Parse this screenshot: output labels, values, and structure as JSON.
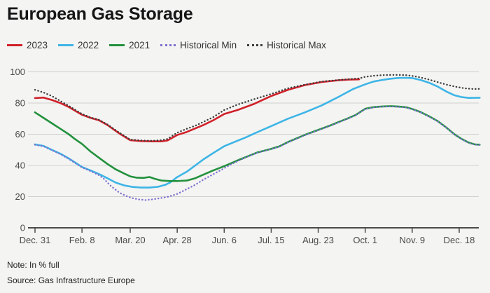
{
  "title": "European Gas Storage",
  "note": "Note: In % full",
  "source": "Source: Gas Infrastructure Europe",
  "colors": {
    "background": "#f4f4f2",
    "title_text": "#161616",
    "grid": "#cfcfcd",
    "axis": "#4b4b4b",
    "tick_label": "#4a4a4a",
    "footer_text": "#1e1e1e"
  },
  "legend": {
    "items": [
      {
        "label": "2023",
        "color": "#d0212a",
        "style": "solid"
      },
      {
        "label": "2022",
        "color": "#3db5e6",
        "style": "solid"
      },
      {
        "label": "2021",
        "color": "#22913d",
        "style": "solid"
      },
      {
        "label": "Historical Min",
        "color": "#7e6fd0",
        "style": "dotted"
      },
      {
        "label": "Historical Max",
        "color": "#3c3c3c",
        "style": "dotted"
      }
    ]
  },
  "chart_data": {
    "type": "line",
    "title": "European Gas Storage",
    "ylabel": "In % full",
    "x_unit": "day_of_year",
    "x_range": [
      0,
      369
    ],
    "ylim": [
      0,
      100
    ],
    "grid": "horizontal",
    "legend_position": "top",
    "y_ticks": [
      0,
      20,
      40,
      60,
      80,
      100
    ],
    "x_tick_days": [
      0,
      39,
      79,
      118,
      157,
      196,
      235,
      274,
      313,
      352
    ],
    "x_tick_labels": [
      "Dec. 31",
      "Feb. 8",
      "Mar. 20",
      "Apr. 28",
      "Jun. 6",
      "Jul. 15",
      "Aug. 23",
      "Oct. 1",
      "Nov. 9",
      "Dec. 18"
    ],
    "series": [
      {
        "name": "2023",
        "color": "#d0212a",
        "style": "solid",
        "points": [
          [
            0,
            83.2
          ],
          [
            7,
            83.5
          ],
          [
            14,
            82
          ],
          [
            21,
            80
          ],
          [
            28,
            77.5
          ],
          [
            39,
            72.5
          ],
          [
            46,
            70.5
          ],
          [
            53,
            69
          ],
          [
            60,
            66
          ],
          [
            70,
            60.5
          ],
          [
            79,
            56.2
          ],
          [
            88,
            55.6
          ],
          [
            97,
            55.4
          ],
          [
            105,
            55.4
          ],
          [
            110,
            56
          ],
          [
            118,
            59.5
          ],
          [
            126,
            61.5
          ],
          [
            140,
            66
          ],
          [
            148,
            69
          ],
          [
            157,
            73
          ],
          [
            168,
            75.5
          ],
          [
            182,
            79.5
          ],
          [
            196,
            84.5
          ],
          [
            210,
            88.5
          ],
          [
            224,
            91.5
          ],
          [
            238,
            93.5
          ],
          [
            252,
            94.6
          ],
          [
            260,
            95
          ],
          [
            269,
            95.2
          ]
        ]
      },
      {
        "name": "2022",
        "color": "#3db5e6",
        "style": "solid",
        "points": [
          [
            0,
            53.5
          ],
          [
            7,
            52.5
          ],
          [
            14,
            50
          ],
          [
            21,
            47.5
          ],
          [
            28,
            44.5
          ],
          [
            39,
            39
          ],
          [
            46,
            36.8
          ],
          [
            53,
            34.5
          ],
          [
            60,
            31.8
          ],
          [
            67,
            29
          ],
          [
            74,
            27.2
          ],
          [
            81,
            26.2
          ],
          [
            88,
            25.8
          ],
          [
            95,
            25.8
          ],
          [
            102,
            26.3
          ],
          [
            108,
            27.5
          ],
          [
            112,
            29
          ],
          [
            118,
            32.5
          ],
          [
            126,
            36
          ],
          [
            133,
            40
          ],
          [
            140,
            44
          ],
          [
            148,
            48
          ],
          [
            157,
            52.3
          ],
          [
            168,
            55.8
          ],
          [
            175,
            58
          ],
          [
            182,
            60.5
          ],
          [
            196,
            65.2
          ],
          [
            210,
            70
          ],
          [
            224,
            74
          ],
          [
            238,
            78.5
          ],
          [
            252,
            84
          ],
          [
            264,
            89
          ],
          [
            274,
            92
          ],
          [
            281,
            93.8
          ],
          [
            288,
            94.8
          ],
          [
            295,
            95.6
          ],
          [
            302,
            96.1
          ],
          [
            308,
            96.2
          ],
          [
            313,
            96
          ],
          [
            320,
            94.8
          ],
          [
            327,
            93
          ],
          [
            334,
            90.6
          ],
          [
            341,
            87.5
          ],
          [
            348,
            85
          ],
          [
            354,
            83.8
          ],
          [
            360,
            83.3
          ],
          [
            369,
            83.4
          ]
        ]
      },
      {
        "name": "2021",
        "color": "#22913d",
        "style": "solid",
        "points": [
          [
            0,
            74
          ],
          [
            7,
            70.5
          ],
          [
            14,
            67
          ],
          [
            21,
            63.5
          ],
          [
            28,
            60
          ],
          [
            33,
            57
          ],
          [
            39,
            53.8
          ],
          [
            46,
            49
          ],
          [
            53,
            45
          ],
          [
            60,
            41
          ],
          [
            67,
            37.5
          ],
          [
            74,
            34.8
          ],
          [
            79,
            33
          ],
          [
            84,
            32.2
          ],
          [
            90,
            32
          ],
          [
            95,
            32.6
          ],
          [
            99,
            31.5
          ],
          [
            105,
            30.3
          ],
          [
            112,
            30
          ],
          [
            118,
            30
          ],
          [
            126,
            30.3
          ],
          [
            133,
            31.8
          ],
          [
            140,
            34.2
          ],
          [
            148,
            36.8
          ],
          [
            157,
            39.5
          ],
          [
            163,
            41.5
          ],
          [
            170,
            43.8
          ],
          [
            177,
            46
          ],
          [
            184,
            48.2
          ],
          [
            191,
            49.6
          ],
          [
            196,
            50.6
          ],
          [
            203,
            52.3
          ],
          [
            210,
            55
          ],
          [
            217,
            57.3
          ],
          [
            224,
            59.6
          ],
          [
            231,
            61.6
          ],
          [
            238,
            63.6
          ],
          [
            245,
            65.6
          ],
          [
            252,
            67.8
          ],
          [
            259,
            70
          ],
          [
            266,
            72.3
          ],
          [
            274,
            76.3
          ],
          [
            281,
            77.4
          ],
          [
            288,
            77.8
          ],
          [
            295,
            78
          ],
          [
            302,
            77.7
          ],
          [
            308,
            77.3
          ],
          [
            313,
            76.2
          ],
          [
            320,
            74.2
          ],
          [
            327,
            71.5
          ],
          [
            334,
            68.5
          ],
          [
            341,
            64.5
          ],
          [
            348,
            60
          ],
          [
            354,
            57
          ],
          [
            360,
            54.6
          ],
          [
            365,
            53.5
          ],
          [
            369,
            53.3
          ]
        ]
      },
      {
        "name": "Historical Min",
        "color": "#7e6fd0",
        "style": "dotted",
        "points": [
          [
            0,
            53.2
          ],
          [
            7,
            52.3
          ],
          [
            14,
            49.8
          ],
          [
            21,
            47.3
          ],
          [
            28,
            44.2
          ],
          [
            39,
            38.7
          ],
          [
            46,
            36.4
          ],
          [
            53,
            33.8
          ],
          [
            57,
            31.5
          ],
          [
            63,
            26.8
          ],
          [
            70,
            22.5
          ],
          [
            76,
            20.3
          ],
          [
            81,
            19
          ],
          [
            86,
            18.2
          ],
          [
            92,
            17.8
          ],
          [
            98,
            18.3
          ],
          [
            104,
            19
          ],
          [
            110,
            19.8
          ],
          [
            118,
            21.7
          ],
          [
            126,
            24.8
          ],
          [
            133,
            27.6
          ],
          [
            140,
            31
          ],
          [
            148,
            34.4
          ],
          [
            157,
            38.2
          ],
          [
            163,
            40.8
          ],
          [
            170,
            43.4
          ],
          [
            177,
            45.8
          ],
          [
            184,
            48
          ],
          [
            191,
            49.4
          ],
          [
            196,
            50.4
          ],
          [
            203,
            52.1
          ],
          [
            210,
            54.8
          ],
          [
            217,
            57.1
          ],
          [
            224,
            59.4
          ],
          [
            231,
            61.4
          ],
          [
            238,
            63.4
          ],
          [
            245,
            65.4
          ],
          [
            252,
            67.6
          ],
          [
            259,
            69.8
          ],
          [
            266,
            72.1
          ],
          [
            274,
            76.1
          ],
          [
            281,
            77.2
          ],
          [
            288,
            77.6
          ],
          [
            295,
            77.8
          ],
          [
            302,
            77.5
          ],
          [
            308,
            77.1
          ],
          [
            313,
            76
          ],
          [
            320,
            74
          ],
          [
            327,
            71.3
          ],
          [
            334,
            68.3
          ],
          [
            341,
            64.3
          ],
          [
            348,
            59.8
          ],
          [
            354,
            56.8
          ],
          [
            360,
            54.4
          ],
          [
            365,
            53.3
          ],
          [
            369,
            53.1
          ]
        ]
      },
      {
        "name": "Historical Max",
        "color": "#3c3c3c",
        "style": "dotted",
        "points": [
          [
            0,
            88.5
          ],
          [
            7,
            86.8
          ],
          [
            14,
            84.5
          ],
          [
            21,
            81.3
          ],
          [
            28,
            78.2
          ],
          [
            39,
            73
          ],
          [
            46,
            70.8
          ],
          [
            53,
            69.3
          ],
          [
            60,
            66.3
          ],
          [
            70,
            61
          ],
          [
            79,
            56.6
          ],
          [
            88,
            56
          ],
          [
            97,
            55.8
          ],
          [
            105,
            56.2
          ],
          [
            110,
            57
          ],
          [
            118,
            61
          ],
          [
            126,
            63.5
          ],
          [
            133,
            65.5
          ],
          [
            140,
            68
          ],
          [
            148,
            71
          ],
          [
            157,
            75.5
          ],
          [
            168,
            79
          ],
          [
            182,
            82.5
          ],
          [
            196,
            85.8
          ],
          [
            210,
            89.5
          ],
          [
            224,
            91.8
          ],
          [
            238,
            93.8
          ],
          [
            252,
            94.8
          ],
          [
            260,
            95.3
          ],
          [
            269,
            95.8
          ],
          [
            274,
            96.8
          ],
          [
            281,
            97.5
          ],
          [
            288,
            97.9
          ],
          [
            295,
            98
          ],
          [
            302,
            98
          ],
          [
            308,
            97.9
          ],
          [
            313,
            97.4
          ],
          [
            320,
            96.4
          ],
          [
            327,
            95
          ],
          [
            336,
            93
          ],
          [
            343,
            91.5
          ],
          [
            350,
            90.3
          ],
          [
            357,
            89.4
          ],
          [
            364,
            89
          ],
          [
            369,
            89.1
          ]
        ]
      }
    ]
  }
}
